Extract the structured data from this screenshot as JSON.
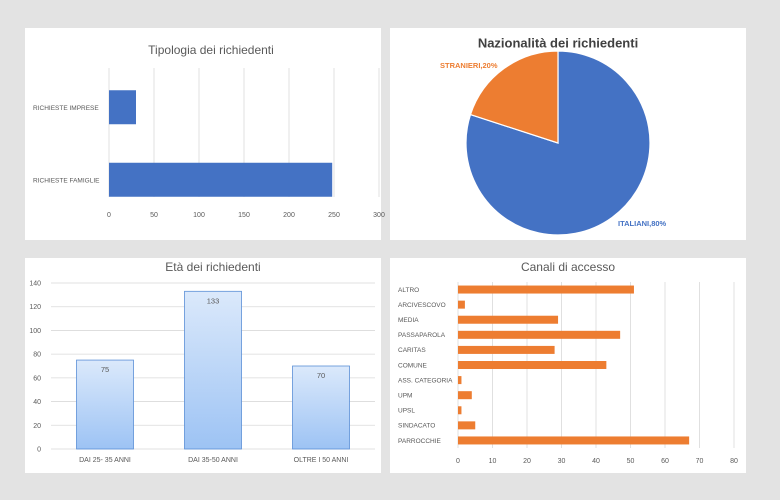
{
  "chart_data": [
    {
      "type": "bar",
      "orientation": "horizontal",
      "title": "Tipologia dei richiedenti",
      "categories": [
        "RICHIESTE IMPRESE",
        "RICHIESTE FAMIGLIE"
      ],
      "values": [
        30,
        248
      ],
      "xlim": [
        0,
        300
      ],
      "xticks": [
        "0",
        "50",
        "100",
        "150",
        "200",
        "250",
        "300"
      ],
      "color": "#4472c4",
      "grid": true
    },
    {
      "type": "pie",
      "title": "Nazionalità dei richiedenti",
      "slices": [
        {
          "label": "ITALIANI,80%",
          "value": 80,
          "color": "#4472c4"
        },
        {
          "label": "STRANIERI,20%",
          "value": 20,
          "color": "#ed7d31"
        }
      ]
    },
    {
      "type": "bar",
      "orientation": "vertical",
      "title": "Età dei richiedenti",
      "categories": [
        "DAI 25- 35 ANNI",
        "DAI 35-50 ANNI",
        "OLTRE I 50 ANNI"
      ],
      "values": [
        75,
        133,
        70
      ],
      "data_labels": [
        "75",
        "133",
        "70"
      ],
      "ylim": [
        0,
        140
      ],
      "yticks": [
        "0",
        "20",
        "40",
        "60",
        "80",
        "100",
        "120",
        "140"
      ],
      "fill_gradient": [
        "#dbe9fb",
        "#9dc3f4"
      ],
      "border_color": "#5b8fd6",
      "grid": true
    },
    {
      "type": "bar",
      "orientation": "horizontal",
      "title": "Canali di accesso",
      "categories": [
        "ALTRO",
        "ARCIVESCOVO",
        "MEDIA",
        "PASSAPAROLA",
        "CARITAS",
        "COMUNE",
        "ASS. CATEGORIA",
        "UPM",
        "UPSL",
        "SINDACATO",
        "PARROCCHIE"
      ],
      "values": [
        51,
        2,
        29,
        47,
        28,
        43,
        1,
        4,
        1,
        5,
        67
      ],
      "xlim": [
        0,
        80
      ],
      "xticks": [
        "0",
        "10",
        "20",
        "30",
        "40",
        "50",
        "60",
        "70",
        "80"
      ],
      "color": "#ed7d31",
      "grid": true
    }
  ]
}
